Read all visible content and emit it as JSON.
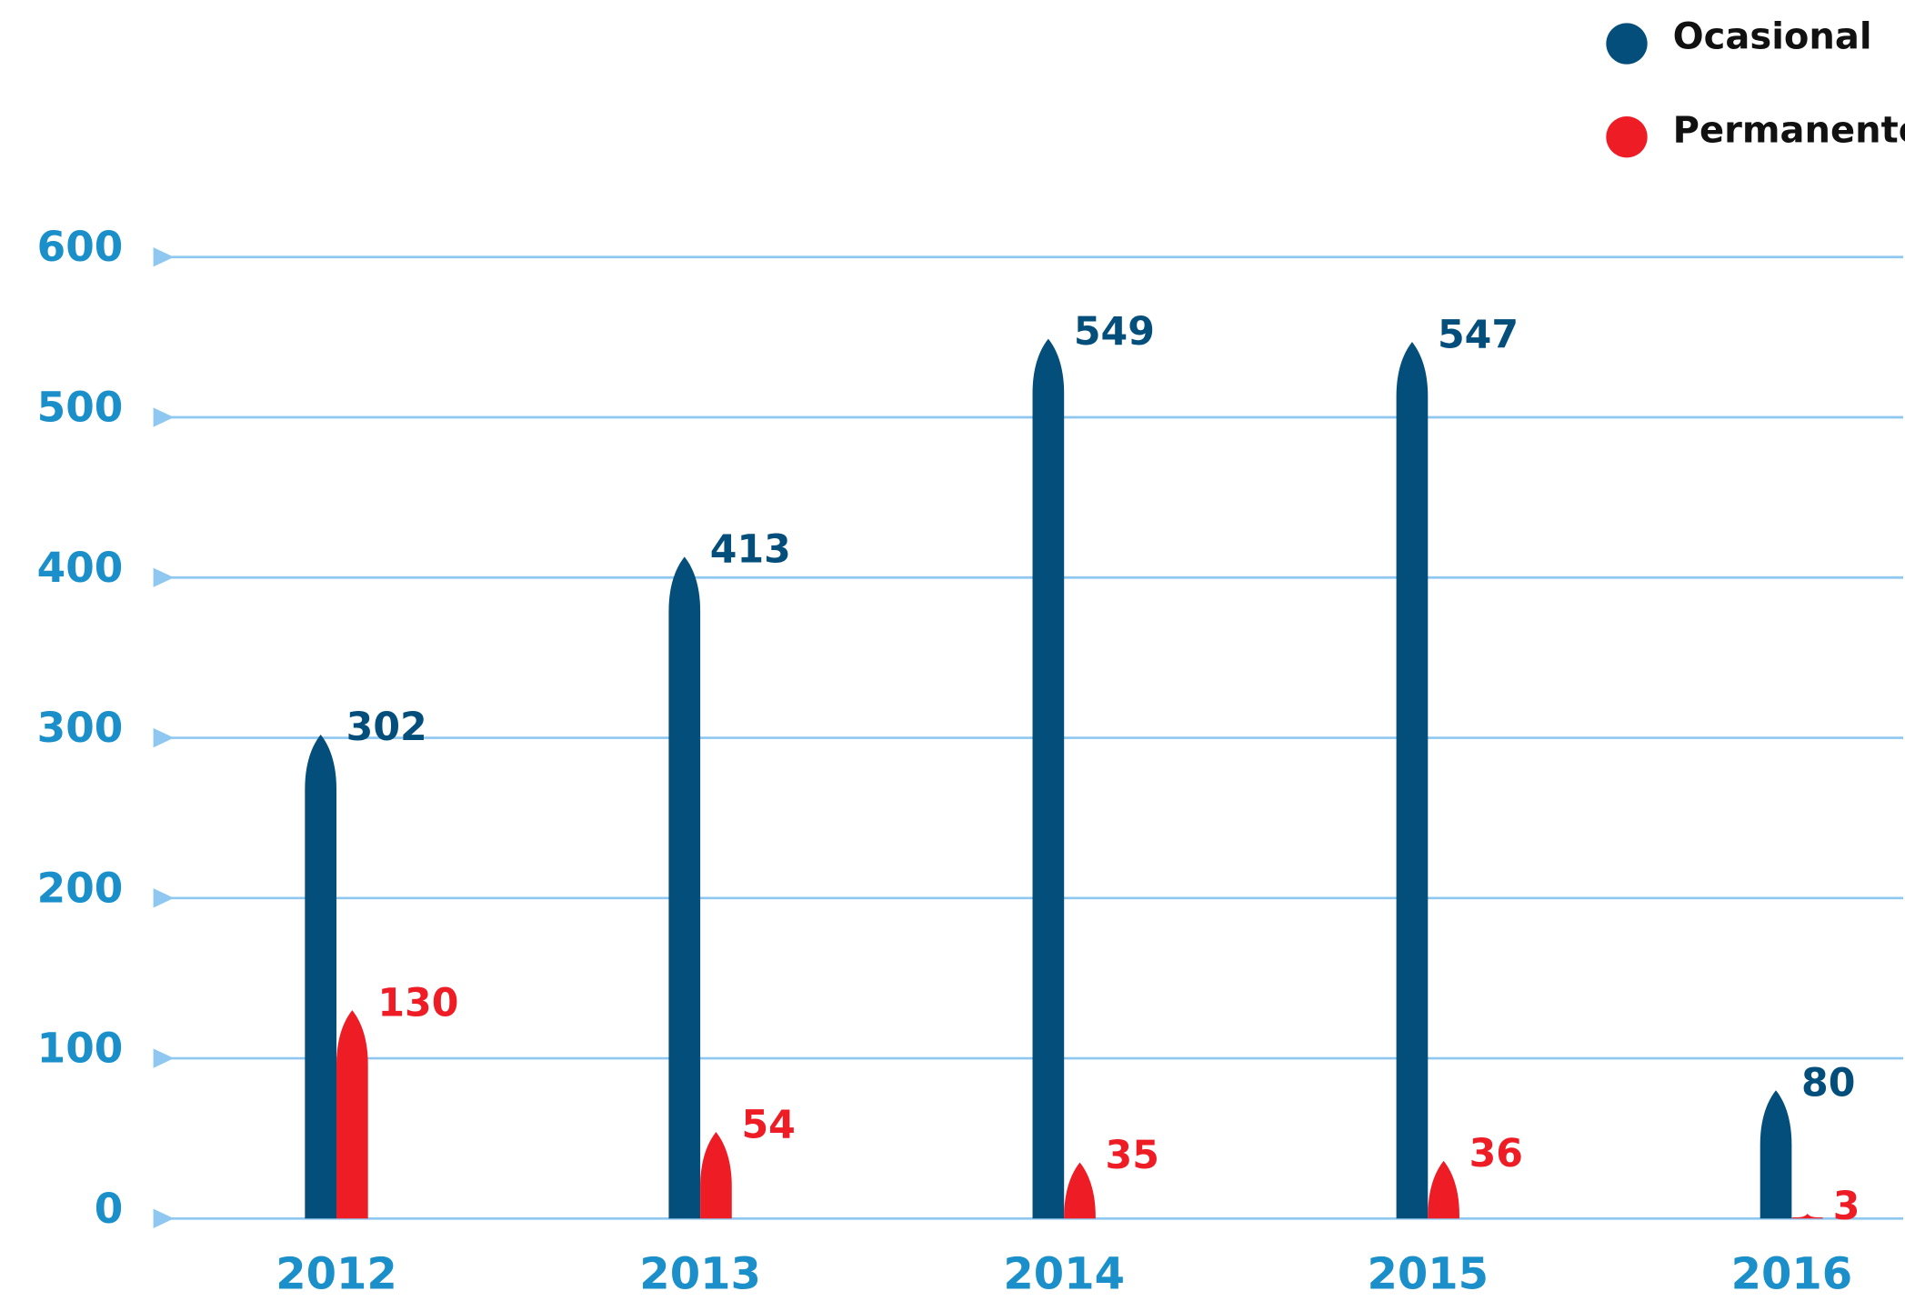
{
  "chart_data": {
    "type": "bar",
    "categories": [
      "2012",
      "2013",
      "2014",
      "2015",
      "2016"
    ],
    "series": [
      {
        "name": "Ocasional",
        "color": "#034e7b",
        "values": [
          302,
          413,
          549,
          547,
          80
        ]
      },
      {
        "name": "Permanente",
        "color": "#ee1c25",
        "values": [
          130,
          54,
          35,
          36,
          3
        ]
      }
    ],
    "ylim": [
      0,
      600
    ],
    "yticks": [
      0,
      100,
      200,
      300,
      400,
      500,
      600
    ],
    "grid": true,
    "legend": "top-right"
  }
}
